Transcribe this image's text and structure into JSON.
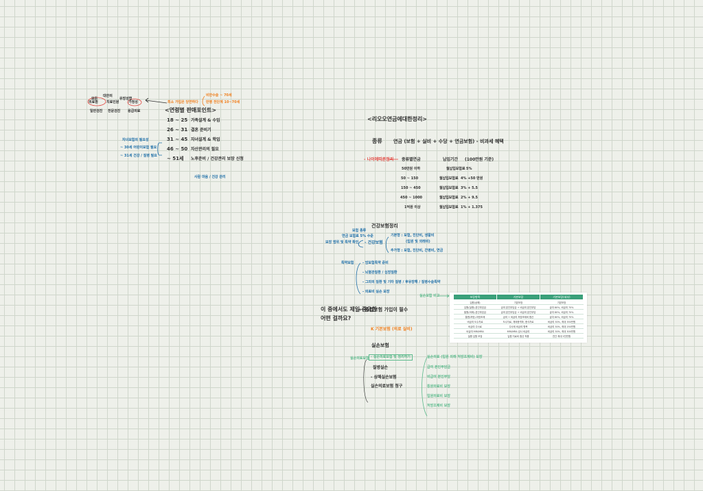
{
  "colors": {
    "background": "#eef0ea",
    "grid": "#cfd6cb",
    "ink_dark": "#2f2f2f",
    "ink_blue": "#1f6fa8",
    "ink_orange": "#f07f1e",
    "ink_red": "#e2433d",
    "ink_green": "#5cba8c",
    "table_header": "#3aa07a"
  },
  "left_cluster": {
    "top_small": [
      "대한의",
      "모든",
      "의료원",
      "치료인원",
      "유방성형",
      "가정성"
    ],
    "row_small": [
      "일반검진",
      "전문검진",
      "응급의료"
    ],
    "orange_top": "최소 가입은 당연하다",
    "orange_right_1": "비만수술 ~ 70세",
    "orange_right_2": "만병 전단계  10~70세",
    "title": "<연령별 판매포인트>",
    "ages": [
      {
        "age": "18 ~ 25",
        "desc": "가족설계 & 수입"
      },
      {
        "age": "26 ~ 31",
        "desc": "결혼 준비기"
      },
      {
        "age": "31 ~ 45",
        "desc": "자녀설계 & 학업"
      },
      {
        "age": "46 ~ 50",
        "desc": "자산관리의 필요"
      },
      {
        "age": "~ 51세",
        "desc": "노후준비 / 건강관리 보장 신청"
      }
    ],
    "blue_left_1": "자녀보험의 필요성",
    "blue_left_2": "~ 30세  어린이보험 필요",
    "blue_left_3": "~ 31세  건강 / 질병 필요",
    "blue_bottom": "사람 마음 / 건강 관리"
  },
  "right_cluster": {
    "title": "<리오오연금에대한정리>",
    "formula_label": "종류",
    "formula": "연금 (보험 + 실비 + 수당 + 연금보험) - 비과세 혜택",
    "red_label": "- 나이에따른정리",
    "tiers": [
      {
        "range": "종류별연금",
        "c1": "납입기간",
        "c2": "(100만원 기준)"
      },
      {
        "range": "50만원 이하",
        "c1": "월납입보험료",
        "c2": "5%"
      },
      {
        "range": "50 ~ 150",
        "c1": "월납입보험료",
        "c2": "4% +50 만원"
      },
      {
        "range": "150 ~ 450",
        "c1": "월납입보험료",
        "c2": "3% + 5.5"
      },
      {
        "range": "450 ~ 1000",
        "c1": "월납입보험료",
        "c2": "2% + 9.5"
      },
      {
        "range": "1억원 이상",
        "c1": "월납입보험료",
        "c2": "1% + 1.375"
      }
    ],
    "section2_title": "건강보험정리",
    "blue_left": [
      "보험 종류",
      "연금 보험료 5% 수준",
      "보장 범위 및 특약 확인"
    ],
    "blue_mid": "- 건강보험",
    "blue_branch_1a": "기본형 : 보험, 진단비, 생활비",
    "blue_branch_1b": "(입원 및 외래비)",
    "blue_branch_2": "추가형 : 보험, 진단비, 간병비, 연금",
    "list_label": "특약보험",
    "list_items": [
      "- 암보험특약 준비",
      "- 뇌혈관질환 / 심장질환",
      "- 그외의 질환 및 기타 질병 / 후유장해 / 질병수술특약",
      "- 의료비 실손 보장"
    ],
    "question_1": "이 중에서도 제일 중요한",
    "question_2": "어떤 걸까요?",
    "arrow_text": "← 종합보험 가입이 필수",
    "orange_note": "K 기본보험 (의료 실비)",
    "section3_title": "실손보험",
    "green_left": "실손의료보험",
    "boxed_item": "- 실손의료보험 및 정리하기",
    "dark_items": [
      "질병실손",
      "- 상해실손보험",
      "실손의료보험 청구"
    ],
    "green_list": [
      "실손의료 (입원 외래 처방조제비) 보장",
      "급여 본인부담금",
      "비급여 본인부담",
      "통원의료비 보장",
      "입원의료비 보장",
      "처방조제비 보장"
    ],
    "table_label": "실손보험 비교",
    "table": {
      "headers": [
        "보장항목",
        "기본보장",
        "기본보장(세부)"
      ],
      "rows": [
        [
          "입원(상해)",
          "기본보장",
          "기본보장"
        ],
        [
          "입원(질병)-본인부담금",
          "급여 본인부담금 + 비급여 본인부담",
          "급여 80%, 비급여 70%"
        ],
        [
          "통원(외래)-본인부담금",
          "급여 본인부담금 + 비급여 본인부담",
          "급여 80%, 비급여 70%"
        ],
        [
          "통원(처방)-처방조제",
          "급여 + 비급여 처방조제비 합산",
          "급여 80%, 비급여 70%"
        ],
        [
          "비급여 도수치료",
          "도수치료, 체외충격파, 증식치료",
          "비급여 30%, 최대 350만원"
        ],
        [
          "비급여 주사료",
          "주사제 비급여 항목",
          "비급여 30%, 최대 250만원"
        ],
        [
          "비급여 MRI/MRA",
          "MRI/MRA 검사 비급여",
          "비급여 30%, 최대 300만원"
        ],
        [
          "질병 입원 보장",
          "입원 치료비 합산 적용",
          "연간 최대 5천만원"
        ]
      ]
    }
  }
}
